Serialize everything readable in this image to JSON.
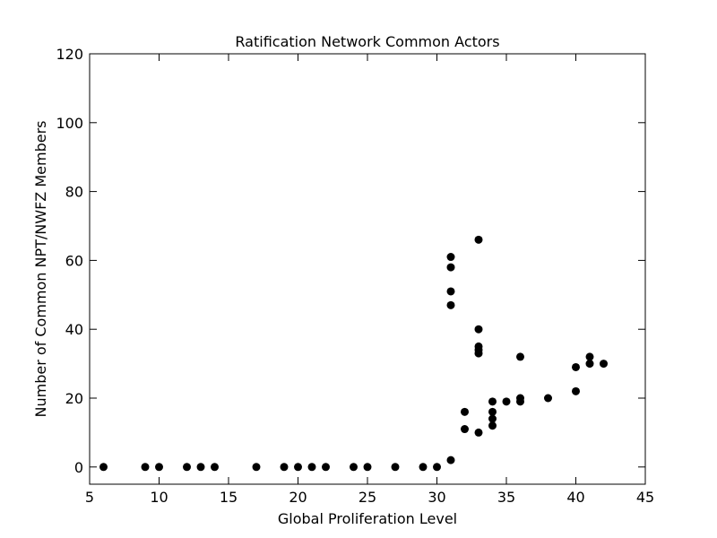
{
  "chart_data": {
    "type": "scatter",
    "title": "Ratification Network Common Actors",
    "xlabel": "Global Proliferation Level",
    "ylabel": "Number of Common NPT/NWFZ Members",
    "xlim": [
      5,
      45
    ],
    "ylim": [
      -5,
      120
    ],
    "xticks": [
      5,
      10,
      15,
      20,
      25,
      30,
      35,
      40,
      45
    ],
    "yticks": [
      0,
      20,
      40,
      60,
      80,
      100,
      120
    ],
    "grid": false,
    "marker_color": "#000000",
    "points": [
      {
        "x": 6,
        "y": 0
      },
      {
        "x": 9,
        "y": 0
      },
      {
        "x": 10,
        "y": 0
      },
      {
        "x": 12,
        "y": 0
      },
      {
        "x": 13,
        "y": 0
      },
      {
        "x": 14,
        "y": 0
      },
      {
        "x": 17,
        "y": 0
      },
      {
        "x": 19,
        "y": 0
      },
      {
        "x": 20,
        "y": 0
      },
      {
        "x": 21,
        "y": 0
      },
      {
        "x": 22,
        "y": 0
      },
      {
        "x": 24,
        "y": 0
      },
      {
        "x": 25,
        "y": 0
      },
      {
        "x": 27,
        "y": 0
      },
      {
        "x": 29,
        "y": 0
      },
      {
        "x": 30,
        "y": 0
      },
      {
        "x": 31,
        "y": 2
      },
      {
        "x": 31,
        "y": 47
      },
      {
        "x": 31,
        "y": 51
      },
      {
        "x": 31,
        "y": 58
      },
      {
        "x": 31,
        "y": 61
      },
      {
        "x": 32,
        "y": 11
      },
      {
        "x": 32,
        "y": 16
      },
      {
        "x": 33,
        "y": 10
      },
      {
        "x": 33,
        "y": 33
      },
      {
        "x": 33,
        "y": 34
      },
      {
        "x": 33,
        "y": 35
      },
      {
        "x": 33,
        "y": 40
      },
      {
        "x": 33,
        "y": 66
      },
      {
        "x": 34,
        "y": 12
      },
      {
        "x": 34,
        "y": 14
      },
      {
        "x": 34,
        "y": 16
      },
      {
        "x": 34,
        "y": 19
      },
      {
        "x": 35,
        "y": 19
      },
      {
        "x": 36,
        "y": 19
      },
      {
        "x": 36,
        "y": 20
      },
      {
        "x": 36,
        "y": 32
      },
      {
        "x": 38,
        "y": 20
      },
      {
        "x": 40,
        "y": 22
      },
      {
        "x": 40,
        "y": 29
      },
      {
        "x": 41,
        "y": 30
      },
      {
        "x": 41,
        "y": 32
      },
      {
        "x": 42,
        "y": 30
      }
    ]
  }
}
